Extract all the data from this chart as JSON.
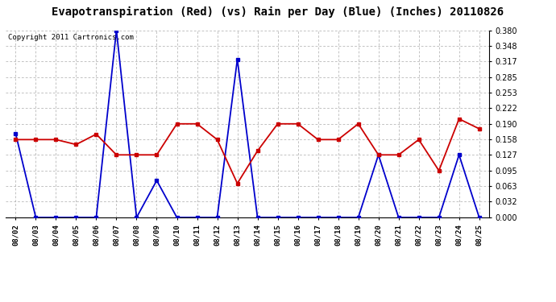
{
  "title": "Evapotranspiration (Red) (vs) Rain per Day (Blue) (Inches) 20110826",
  "copyright": "Copyright 2011 Cartronics.com",
  "dates": [
    "08/02",
    "08/03",
    "08/04",
    "08/05",
    "08/06",
    "08/07",
    "08/08",
    "08/09",
    "08/10",
    "08/11",
    "08/12",
    "08/13",
    "08/14",
    "08/15",
    "08/16",
    "08/17",
    "08/18",
    "08/19",
    "08/20",
    "08/21",
    "08/22",
    "08/23",
    "08/24",
    "08/25"
  ],
  "blue_rain": [
    0.17,
    0.0,
    0.0,
    0.0,
    0.0,
    0.38,
    0.0,
    0.075,
    0.0,
    0.0,
    0.0,
    0.321,
    0.0,
    0.0,
    0.0,
    0.0,
    0.0,
    0.0,
    0.127,
    0.0,
    0.0,
    0.0,
    0.127,
    0.0
  ],
  "red_et": [
    0.158,
    0.158,
    0.158,
    0.148,
    0.169,
    0.127,
    0.127,
    0.127,
    0.19,
    0.19,
    0.158,
    0.069,
    0.135,
    0.19,
    0.19,
    0.158,
    0.158,
    0.19,
    0.127,
    0.127,
    0.158,
    0.095,
    0.2,
    0.18
  ],
  "ylim": [
    0.0,
    0.38
  ],
  "yticks": [
    0.0,
    0.032,
    0.063,
    0.095,
    0.127,
    0.158,
    0.19,
    0.222,
    0.253,
    0.285,
    0.317,
    0.348,
    0.38
  ],
  "blue_color": "#0000CC",
  "red_color": "#CC0000",
  "bg_color": "#FFFFFF",
  "grid_color": "#AAAAAA",
  "title_fontsize": 10,
  "copyright_fontsize": 6.5,
  "figwidth": 6.9,
  "figheight": 3.75,
  "dpi": 100
}
